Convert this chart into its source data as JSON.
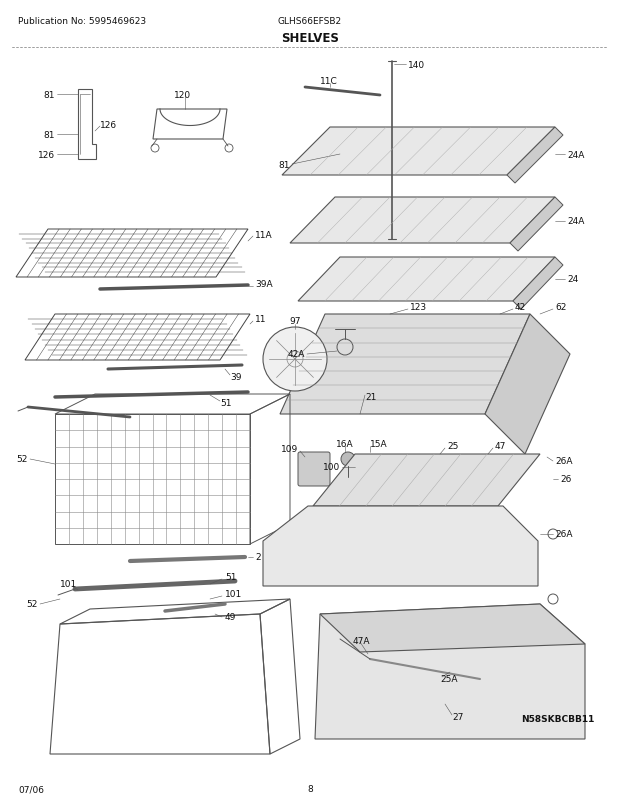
{
  "bg_color": "#ffffff",
  "title": "SHELVES",
  "pub_no": "Publication No: 5995469623",
  "model": "GLHS66EFSB2",
  "diagram_id": "N58SKBCBB11",
  "date": "07/06",
  "page": "8",
  "lc": "#555555",
  "tc": "#111111",
  "lfs": 6.5,
  "hfs": 6.5,
  "tfs": 8.5
}
